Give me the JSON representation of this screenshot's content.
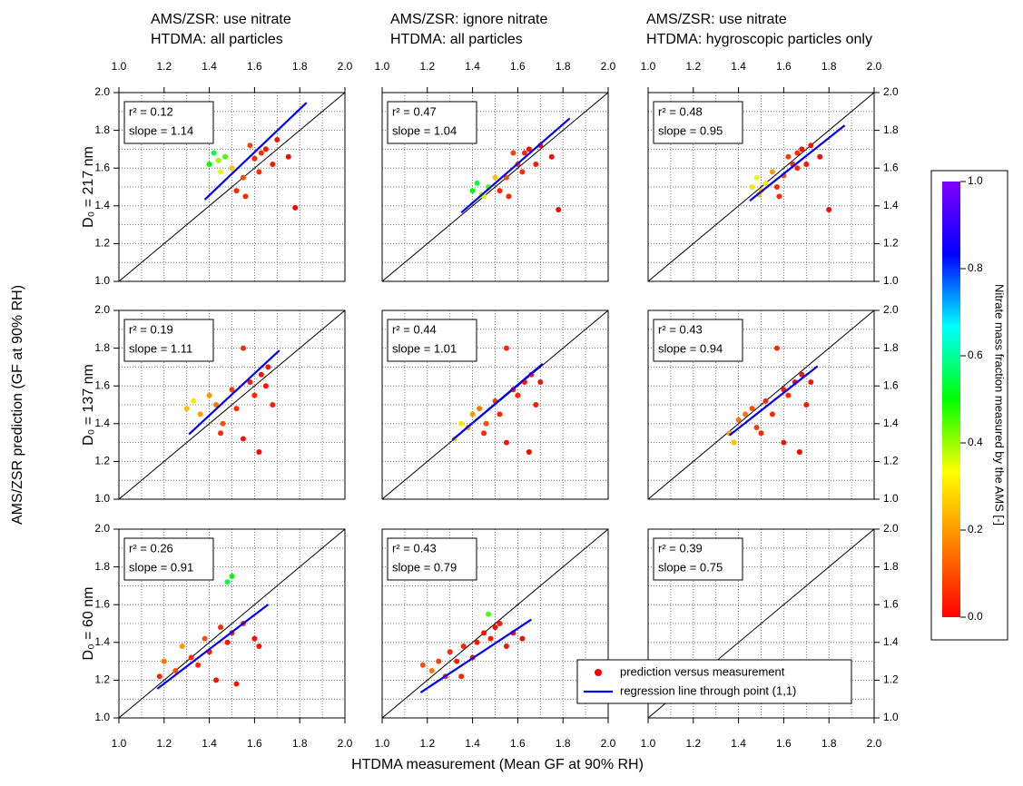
{
  "column_titles": [
    [
      "AMS/ZSR: use nitrate",
      "HTDMA: all particles"
    ],
    [
      "AMS/ZSR: ignore nitrate",
      "HTDMA: all particles"
    ],
    [
      "AMS/ZSR: use nitrate",
      "HTDMA: hygroscopic particles only"
    ]
  ],
  "row_labels": [
    "D₀ = 217 nm",
    "D₀ = 137 nm",
    "D₀ = 60 nm"
  ],
  "x_label": "HTDMA measurement (Mean GF at 90% RH)",
  "y_label": "AMS/ZSR prediction (GF at 90% RH)",
  "legend": [
    {
      "name": "prediction versus measurement",
      "color": "#ff0000",
      "kind": "marker"
    },
    {
      "name": "regression line through point (1,1)",
      "color": "#0000ff",
      "kind": "line"
    }
  ],
  "colorbar": {
    "label": "Nitrate mass fraction measured by the AMS  [-]",
    "lim": [
      0,
      1
    ],
    "ticks": [
      {
        "value": 0,
        "label": "0.0"
      },
      0.2,
      0.4,
      0.6,
      0.8,
      {
        "value": 1,
        "label": "1.0"
      }
    ],
    "colormap": [
      "#ff0000",
      "#ff8000",
      "#ffff00",
      "#00ff00",
      "#00ffff",
      "#0000ff",
      "#8000ff"
    ]
  },
  "chart_data": [
    {
      "type": "scatter",
      "xlim": [
        1,
        2
      ],
      "ylim": [
        1,
        2
      ],
      "xtick_side": "top",
      "ytick_side": "left",
      "xticks": [
        {
          "value": 1,
          "label": "1.0"
        },
        1.2,
        1.4,
        1.6,
        1.8,
        {
          "value": 2,
          "label": "2.0"
        }
      ],
      "yticks": [
        {
          "value": 1,
          "label": "1.0"
        },
        1.2,
        1.4,
        1.6,
        1.8,
        {
          "value": 2,
          "label": "2.0"
        }
      ],
      "xminor": [
        1.1,
        1.3,
        1.5,
        1.7,
        1.9
      ],
      "yminor": [
        1.1,
        1.3,
        1.5,
        1.7,
        1.9
      ],
      "grid": true,
      "annotations": [
        {
          "value": 0.12,
          "label": "r² = 0.12"
        },
        {
          "value": 1.14,
          "label": "slope = 1.14"
        }
      ],
      "fit_x": [
        1.38,
        1.83
      ],
      "x": [
        1.4,
        1.42,
        1.45,
        1.47,
        1.5,
        1.52,
        1.55,
        1.58,
        1.6,
        1.62,
        1.65,
        1.68,
        1.7,
        1.75,
        1.78,
        1.44,
        1.56,
        1.63
      ],
      "y": [
        1.62,
        1.68,
        1.58,
        1.66,
        1.6,
        1.48,
        1.55,
        1.72,
        1.65,
        1.58,
        1.7,
        1.62,
        1.75,
        1.66,
        1.39,
        1.64,
        1.45,
        1.68
      ],
      "color_values": [
        0.5,
        0.55,
        0.35,
        0.45,
        0.25,
        0.05,
        0.1,
        0.08,
        0.05,
        0.05,
        0.02,
        0.03,
        0.02,
        0.01,
        0.0,
        0.4,
        0.05,
        0.05
      ]
    },
    {
      "type": "scatter",
      "xlim": [
        1,
        2
      ],
      "ylim": [
        1,
        2
      ],
      "xtick_side": "top",
      "ytick_side": null,
      "xticks": [
        {
          "value": 1,
          "label": "1.0"
        },
        1.2,
        1.4,
        1.6,
        1.8,
        {
          "value": 2,
          "label": "2.0"
        }
      ],
      "yticks": [
        1,
        1.2,
        1.4,
        1.6,
        1.8,
        2
      ],
      "xminor": [
        1.1,
        1.3,
        1.5,
        1.7,
        1.9
      ],
      "yminor": [
        1.1,
        1.3,
        1.5,
        1.7,
        1.9
      ],
      "grid": true,
      "annotations": [
        {
          "value": 0.47,
          "label": "r² = 0.47"
        },
        {
          "value": 1.04,
          "label": "slope = 1.04"
        }
      ],
      "fit_x": [
        1.35,
        1.83
      ],
      "x": [
        1.4,
        1.42,
        1.45,
        1.47,
        1.5,
        1.52,
        1.55,
        1.58,
        1.6,
        1.62,
        1.65,
        1.68,
        1.7,
        1.75,
        1.78,
        1.44,
        1.56,
        1.63
      ],
      "y": [
        1.48,
        1.52,
        1.45,
        1.5,
        1.55,
        1.48,
        1.55,
        1.68,
        1.62,
        1.58,
        1.7,
        1.62,
        1.72,
        1.66,
        1.38,
        1.46,
        1.45,
        1.68
      ],
      "color_values": [
        0.5,
        0.55,
        0.35,
        0.45,
        0.25,
        0.05,
        0.1,
        0.08,
        0.05,
        0.05,
        0.02,
        0.03,
        0.02,
        0.01,
        0.0,
        0.4,
        0.05,
        0.05
      ]
    },
    {
      "type": "scatter",
      "xlim": [
        1,
        2
      ],
      "ylim": [
        1,
        2
      ],
      "xtick_side": "top",
      "ytick_side": "right",
      "xticks": [
        {
          "value": 1,
          "label": "1.0"
        },
        1.2,
        1.4,
        1.6,
        1.8,
        {
          "value": 2,
          "label": "2.0"
        }
      ],
      "yticks": [
        {
          "value": 1,
          "label": "1.0"
        },
        1.2,
        1.4,
        1.6,
        1.8,
        {
          "value": 2,
          "label": "2.0"
        }
      ],
      "xminor": [
        1.1,
        1.3,
        1.5,
        1.7,
        1.9
      ],
      "yminor": [
        1.1,
        1.3,
        1.5,
        1.7,
        1.9
      ],
      "grid": true,
      "annotations": [
        {
          "value": 0.48,
          "label": "r² = 0.48"
        },
        {
          "value": 0.95,
          "label": "slope = 0.95"
        }
      ],
      "fit_x": [
        1.45,
        1.87
      ],
      "x": [
        1.46,
        1.48,
        1.5,
        1.52,
        1.55,
        1.57,
        1.6,
        1.62,
        1.64,
        1.66,
        1.68,
        1.7,
        1.72,
        1.76,
        1.8,
        1.49,
        1.58,
        1.66
      ],
      "y": [
        1.5,
        1.55,
        1.48,
        1.52,
        1.58,
        1.5,
        1.56,
        1.66,
        1.62,
        1.6,
        1.7,
        1.62,
        1.72,
        1.66,
        1.38,
        1.46,
        1.45,
        1.68
      ],
      "color_values": [
        0.3,
        0.35,
        0.25,
        0.3,
        0.2,
        0.05,
        0.1,
        0.08,
        0.05,
        0.05,
        0.02,
        0.03,
        0.02,
        0.01,
        0.0,
        0.25,
        0.05,
        0.05
      ]
    },
    {
      "type": "scatter",
      "xlim": [
        1,
        2
      ],
      "ylim": [
        1,
        2
      ],
      "xtick_side": null,
      "ytick_side": "left",
      "xticks": [
        1,
        1.2,
        1.4,
        1.6,
        1.8,
        2
      ],
      "yticks": [
        {
          "value": 1,
          "label": "1.0"
        },
        1.2,
        1.4,
        1.6,
        1.8,
        {
          "value": 2,
          "label": "2.0"
        }
      ],
      "xminor": [
        1.1,
        1.3,
        1.5,
        1.7,
        1.9
      ],
      "yminor": [
        1.1,
        1.3,
        1.5,
        1.7,
        1.9
      ],
      "grid": true,
      "annotations": [
        {
          "value": 0.19,
          "label": "r² = 0.19"
        },
        {
          "value": 1.11,
          "label": "slope = 1.11"
        }
      ],
      "fit_x": [
        1.31,
        1.71
      ],
      "x": [
        1.3,
        1.33,
        1.36,
        1.4,
        1.43,
        1.46,
        1.5,
        1.52,
        1.55,
        1.58,
        1.6,
        1.63,
        1.66,
        1.68,
        1.55,
        1.62,
        1.45,
        1.65
      ],
      "y": [
        1.48,
        1.52,
        1.45,
        1.55,
        1.5,
        1.4,
        1.58,
        1.48,
        1.8,
        1.62,
        1.55,
        1.66,
        1.7,
        1.5,
        1.32,
        1.25,
        1.35,
        1.6
      ],
      "color_values": [
        0.25,
        0.3,
        0.2,
        0.2,
        0.15,
        0.1,
        0.08,
        0.05,
        0.05,
        0.03,
        0.05,
        0.02,
        0.02,
        0.03,
        0.02,
        0.0,
        0.05,
        0.02
      ]
    },
    {
      "type": "scatter",
      "xlim": [
        1,
        2
      ],
      "ylim": [
        1,
        2
      ],
      "xtick_side": null,
      "ytick_side": null,
      "xticks": [
        1,
        1.2,
        1.4,
        1.6,
        1.8,
        2
      ],
      "yticks": [
        1,
        1.2,
        1.4,
        1.6,
        1.8,
        2
      ],
      "xminor": [
        1.1,
        1.3,
        1.5,
        1.7,
        1.9
      ],
      "yminor": [
        1.1,
        1.3,
        1.5,
        1.7,
        1.9
      ],
      "grid": true,
      "annotations": [
        {
          "value": 0.44,
          "label": "r² = 0.44"
        },
        {
          "value": 1.01,
          "label": "slope = 1.01"
        }
      ],
      "fit_x": [
        1.31,
        1.71
      ],
      "x": [
        1.32,
        1.35,
        1.38,
        1.4,
        1.43,
        1.46,
        1.5,
        1.52,
        1.55,
        1.58,
        1.6,
        1.63,
        1.66,
        1.68,
        1.55,
        1.65,
        1.45,
        1.7
      ],
      "y": [
        1.32,
        1.4,
        1.38,
        1.45,
        1.48,
        1.4,
        1.52,
        1.45,
        1.8,
        1.58,
        1.55,
        1.62,
        1.66,
        1.5,
        1.3,
        1.25,
        1.35,
        1.62
      ],
      "color_values": [
        0.25,
        0.3,
        0.2,
        0.2,
        0.15,
        0.1,
        0.08,
        0.05,
        0.05,
        0.03,
        0.05,
        0.02,
        0.02,
        0.03,
        0.02,
        0.0,
        0.05,
        0.02
      ]
    },
    {
      "type": "scatter",
      "xlim": [
        1,
        2
      ],
      "ylim": [
        1,
        2
      ],
      "xtick_side": null,
      "ytick_side": "right",
      "xticks": [
        1,
        1.2,
        1.4,
        1.6,
        1.8,
        2
      ],
      "yticks": [
        {
          "value": 1,
          "label": "1.0"
        },
        1.2,
        1.4,
        1.6,
        1.8,
        {
          "value": 2,
          "label": "2.0"
        }
      ],
      "xminor": [
        1.1,
        1.3,
        1.5,
        1.7,
        1.9
      ],
      "yminor": [
        1.1,
        1.3,
        1.5,
        1.7,
        1.9
      ],
      "grid": true,
      "annotations": [
        {
          "value": 0.43,
          "label": "r² = 0.43"
        },
        {
          "value": 0.94,
          "label": "slope = 0.94"
        }
      ],
      "fit_x": [
        1.36,
        1.75
      ],
      "x": [
        1.36,
        1.38,
        1.4,
        1.43,
        1.46,
        1.48,
        1.52,
        1.55,
        1.57,
        1.6,
        1.62,
        1.65,
        1.68,
        1.7,
        1.6,
        1.67,
        1.5,
        1.72
      ],
      "y": [
        1.35,
        1.3,
        1.42,
        1.45,
        1.48,
        1.38,
        1.52,
        1.45,
        1.8,
        1.58,
        1.55,
        1.62,
        1.66,
        1.5,
        1.3,
        1.25,
        1.35,
        1.62
      ],
      "color_values": [
        0.2,
        0.25,
        0.15,
        0.15,
        0.1,
        0.08,
        0.05,
        0.05,
        0.05,
        0.03,
        0.05,
        0.02,
        0.02,
        0.03,
        0.02,
        0.0,
        0.05,
        0.02
      ]
    },
    {
      "type": "scatter",
      "xlim": [
        1,
        2
      ],
      "ylim": [
        1,
        2
      ],
      "xtick_side": "bottom",
      "ytick_side": "left",
      "xticks": [
        {
          "value": 1,
          "label": "1.0"
        },
        1.2,
        1.4,
        1.6,
        1.8,
        {
          "value": 2,
          "label": "2.0"
        }
      ],
      "yticks": [
        {
          "value": 1,
          "label": "1.0"
        },
        1.2,
        1.4,
        1.6,
        1.8,
        {
          "value": 2,
          "label": "2.0"
        }
      ],
      "xminor": [
        1.1,
        1.3,
        1.5,
        1.7,
        1.9
      ],
      "yminor": [
        1.1,
        1.3,
        1.5,
        1.7,
        1.9
      ],
      "grid": true,
      "annotations": [
        {
          "value": 0.26,
          "label": "r² = 0.26"
        },
        {
          "value": 0.91,
          "label": "slope = 0.91"
        }
      ],
      "fit_x": [
        1.17,
        1.66
      ],
      "x": [
        1.18,
        1.2,
        1.25,
        1.28,
        1.32,
        1.35,
        1.38,
        1.4,
        1.43,
        1.45,
        1.48,
        1.5,
        1.52,
        1.55,
        1.6,
        1.62,
        1.48,
        1.5
      ],
      "y": [
        1.22,
        1.3,
        1.25,
        1.38,
        1.32,
        1.28,
        1.42,
        1.35,
        1.2,
        1.48,
        1.4,
        1.45,
        1.18,
        1.5,
        1.42,
        1.38,
        1.72,
        1.75
      ],
      "color_values": [
        0.05,
        0.15,
        0.1,
        0.2,
        0.05,
        0.05,
        0.1,
        0.03,
        0.02,
        0.05,
        0.02,
        0.03,
        0.02,
        0.05,
        0.02,
        0.02,
        0.55,
        0.5
      ]
    },
    {
      "type": "scatter",
      "xlim": [
        1,
        2
      ],
      "ylim": [
        1,
        2
      ],
      "xtick_side": "bottom",
      "ytick_side": null,
      "xticks": [
        {
          "value": 1,
          "label": "1.0"
        },
        1.2,
        1.4,
        1.6,
        1.8,
        {
          "value": 2,
          "label": "2.0"
        }
      ],
      "yticks": [
        1,
        1.2,
        1.4,
        1.6,
        1.8,
        2
      ],
      "xminor": [
        1.1,
        1.3,
        1.5,
        1.7,
        1.9
      ],
      "yminor": [
        1.1,
        1.3,
        1.5,
        1.7,
        1.9
      ],
      "grid": true,
      "annotations": [
        {
          "value": 0.43,
          "label": "r² = 0.43"
        },
        {
          "value": 0.79,
          "label": "slope = 0.79"
        }
      ],
      "fit_x": [
        1.17,
        1.66
      ],
      "x": [
        1.18,
        1.22,
        1.25,
        1.28,
        1.3,
        1.33,
        1.36,
        1.4,
        1.42,
        1.45,
        1.48,
        1.5,
        1.52,
        1.55,
        1.58,
        1.62,
        1.47,
        1.35
      ],
      "y": [
        1.28,
        1.25,
        1.3,
        1.22,
        1.35,
        1.3,
        1.38,
        1.32,
        1.4,
        1.45,
        1.42,
        1.48,
        1.5,
        1.38,
        1.45,
        1.42,
        1.55,
        1.22
      ],
      "color_values": [
        0.1,
        0.15,
        0.08,
        0.05,
        0.05,
        0.03,
        0.05,
        0.02,
        0.03,
        0.02,
        0.03,
        0.02,
        0.03,
        0.02,
        0.01,
        0.01,
        0.45,
        0.05
      ]
    },
    {
      "type": "scatter",
      "xlim": [
        1,
        2
      ],
      "ylim": [
        1,
        2
      ],
      "xtick_side": "bottom",
      "ytick_side": "right",
      "xticks": [
        {
          "value": 1,
          "label": "1.0"
        },
        1.2,
        1.4,
        1.6,
        1.8,
        {
          "value": 2,
          "label": "2.0"
        }
      ],
      "yticks": [
        {
          "value": 1,
          "label": "1.0"
        },
        1.2,
        1.4,
        1.6,
        1.8,
        {
          "value": 2,
          "label": "2.0"
        }
      ],
      "xminor": [
        1.1,
        1.3,
        1.5,
        1.7,
        1.9
      ],
      "yminor": [
        1.1,
        1.3,
        1.5,
        1.7,
        1.9
      ],
      "grid": true,
      "annotations": [
        {
          "value": 0.39,
          "label": "r² = 0.39"
        },
        {
          "value": 0.75,
          "label": "slope = 0.75"
        }
      ],
      "x": [],
      "y": [],
      "color_values": []
    }
  ]
}
